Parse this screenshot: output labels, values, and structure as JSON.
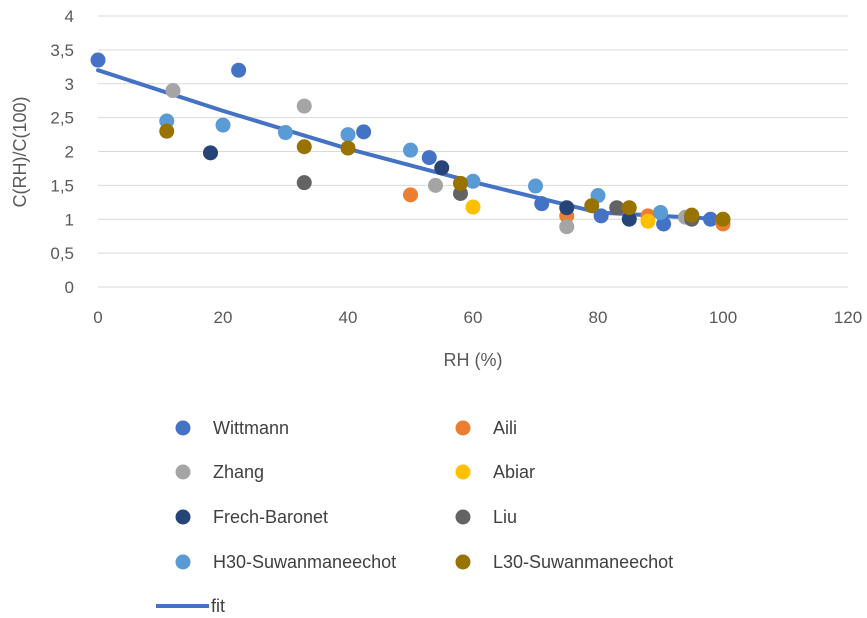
{
  "chart_data": {
    "type": "scatter",
    "title": "",
    "xlabel": "RH (%)",
    "ylabel": "C(RH)/C(100)",
    "xlim": [
      0,
      120
    ],
    "ylim": [
      0,
      4
    ],
    "x_ticks": [
      0,
      20,
      40,
      60,
      80,
      100,
      120
    ],
    "y_ticks": [
      0,
      0.5,
      1,
      1.5,
      2,
      2.5,
      3,
      3.5,
      4
    ],
    "x_tick_labels": [
      "0",
      "20",
      "40",
      "60",
      "80",
      "100",
      "120"
    ],
    "y_tick_labels": [
      "0",
      "0,5",
      "1",
      "1,5",
      "2",
      "2,5",
      "3",
      "3,5",
      "4"
    ],
    "grid": "horizontal",
    "legend_position": "bottom",
    "series": [
      {
        "name": "Wittmann",
        "color": "#4472C4",
        "points": [
          [
            0,
            3.35
          ],
          [
            22.5,
            3.2
          ],
          [
            42.5,
            2.29
          ],
          [
            53,
            1.91
          ],
          [
            71,
            1.23
          ],
          [
            80.5,
            1.05
          ],
          [
            90.5,
            0.93
          ],
          [
            98,
            1.0
          ]
        ]
      },
      {
        "name": "Aili",
        "color": "#ED7D31",
        "points": [
          [
            50,
            1.36
          ],
          [
            75,
            1.05
          ],
          [
            88,
            1.05
          ],
          [
            100,
            0.93
          ]
        ]
      },
      {
        "name": "Zhang",
        "color": "#A5A5A5",
        "points": [
          [
            12,
            2.9
          ],
          [
            33,
            2.67
          ],
          [
            54,
            1.5
          ],
          [
            75,
            0.89
          ],
          [
            94,
            1.03
          ]
        ]
      },
      {
        "name": "Abiar",
        "color": "#FFC000",
        "points": [
          [
            60,
            1.18
          ],
          [
            88,
            0.97
          ],
          [
            100,
            1.0
          ]
        ]
      },
      {
        "name": "Frech-Baronet",
        "color": "#264478",
        "points": [
          [
            18,
            1.98
          ],
          [
            55,
            1.76
          ],
          [
            75,
            1.17
          ],
          [
            85,
            1.0
          ],
          [
            95,
            1.05
          ]
        ]
      },
      {
        "name": "Liu",
        "color": "#636363",
        "points": [
          [
            33,
            1.54
          ],
          [
            58,
            1.38
          ],
          [
            83,
            1.17
          ],
          [
            95,
            1.0
          ]
        ]
      },
      {
        "name": "H30-Suwanmaneechot",
        "color": "#5B9BD5",
        "points": [
          [
            11,
            2.45
          ],
          [
            20,
            2.39
          ],
          [
            30,
            2.28
          ],
          [
            40,
            2.25
          ],
          [
            50,
            2.02
          ],
          [
            60,
            1.56
          ],
          [
            70,
            1.49
          ],
          [
            80,
            1.35
          ],
          [
            90,
            1.1
          ]
        ]
      },
      {
        "name": "L30-Suwanmaneechot",
        "color": "#997300",
        "points": [
          [
            11,
            2.3
          ],
          [
            33,
            2.07
          ],
          [
            40,
            2.05
          ],
          [
            58,
            1.53
          ],
          [
            79,
            1.2
          ],
          [
            85,
            1.17
          ],
          [
            95,
            1.06
          ],
          [
            100,
            1.0
          ]
        ]
      }
    ],
    "fit": {
      "name": "fit",
      "color": "#4472C4",
      "x": [
        0,
        20,
        40,
        60,
        80,
        100
      ],
      "y": [
        3.2,
        2.6,
        2.04,
        1.55,
        1.1,
        1.0
      ]
    }
  }
}
